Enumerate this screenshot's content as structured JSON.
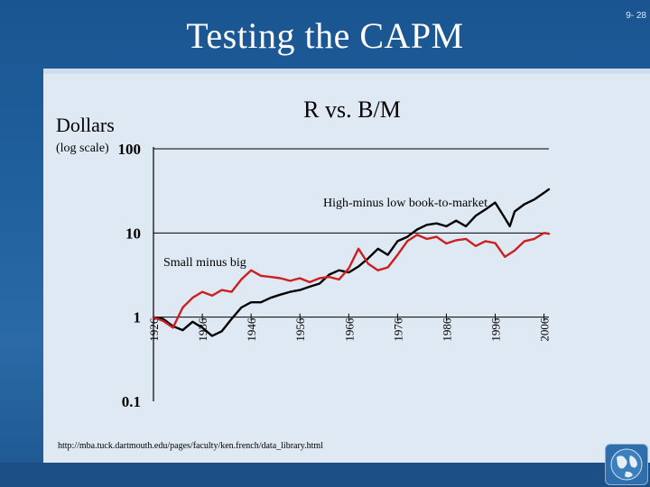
{
  "slide": {
    "title": "Testing the CAPM",
    "number": "9- 28",
    "source_url": "http://mba.tuck.dartmouth.edu/pages/faculty/ken.french/data_library.html"
  },
  "chart_data": {
    "type": "line",
    "title": "R vs. B/M",
    "ylabel_line1": "Dollars",
    "ylabel_line2": "(log scale)",
    "yscale": "log",
    "ylim": [
      0.1,
      100
    ],
    "yticks": [
      100,
      10,
      1,
      0.1
    ],
    "ytick_labels": [
      "100",
      "10",
      "1",
      "0.1"
    ],
    "xlim": [
      1926,
      2007
    ],
    "xticks": [
      1926,
      1936,
      1946,
      1956,
      1966,
      1976,
      1986,
      1996,
      2006
    ],
    "xtick_labels": [
      "1926",
      "1936",
      "1946",
      "1956",
      "1966",
      "1976",
      "1986",
      "1996",
      "2006"
    ],
    "grid": "horizontal gridlines at 10 and 100",
    "colors": {
      "hml": "#000000",
      "smb": "#cc1f1f"
    },
    "series": [
      {
        "name": "High-minus low book-to-market",
        "x": [
          1926,
          1928,
          1930,
          1932,
          1934,
          1936,
          1938,
          1940,
          1942,
          1944,
          1946,
          1948,
          1950,
          1952,
          1954,
          1956,
          1958,
          1960,
          1962,
          1964,
          1966,
          1968,
          1970,
          1972,
          1974,
          1976,
          1978,
          1980,
          1982,
          1984,
          1986,
          1988,
          1990,
          1992,
          1994,
          1996,
          1998,
          1999,
          2000,
          2002,
          2004,
          2006,
          2007
        ],
        "y": [
          1.0,
          0.95,
          0.78,
          0.7,
          0.88,
          0.75,
          0.6,
          0.68,
          0.95,
          1.3,
          1.5,
          1.5,
          1.7,
          1.85,
          2.0,
          2.1,
          2.3,
          2.5,
          3.2,
          3.6,
          3.4,
          4.0,
          5.0,
          6.5,
          5.5,
          8.0,
          9.0,
          11.0,
          12.5,
          13.0,
          12.0,
          14.0,
          12.0,
          16.0,
          19.0,
          23.0,
          15.0,
          12.0,
          18.0,
          22.0,
          25.0,
          30.0,
          33.0
        ]
      },
      {
        "name": "Small minus big",
        "x": [
          1926,
          1928,
          1930,
          1932,
          1934,
          1936,
          1938,
          1940,
          1942,
          1944,
          1946,
          1948,
          1950,
          1952,
          1954,
          1956,
          1958,
          1960,
          1962,
          1964,
          1966,
          1968,
          1970,
          1972,
          1974,
          1976,
          1978,
          1980,
          1982,
          1984,
          1986,
          1988,
          1990,
          1992,
          1994,
          1996,
          1998,
          2000,
          2002,
          2004,
          2006,
          2007
        ],
        "y": [
          1.0,
          0.9,
          0.75,
          1.3,
          1.7,
          2.0,
          1.8,
          2.1,
          2.0,
          2.8,
          3.6,
          3.1,
          3.0,
          2.9,
          2.7,
          2.9,
          2.6,
          2.9,
          3.0,
          2.8,
          3.8,
          6.5,
          4.3,
          3.6,
          3.9,
          5.5,
          8.0,
          9.5,
          8.5,
          9.0,
          7.5,
          8.2,
          8.5,
          7.0,
          8.0,
          7.6,
          5.2,
          6.2,
          8.0,
          8.5,
          10.0,
          9.8
        ]
      }
    ]
  }
}
